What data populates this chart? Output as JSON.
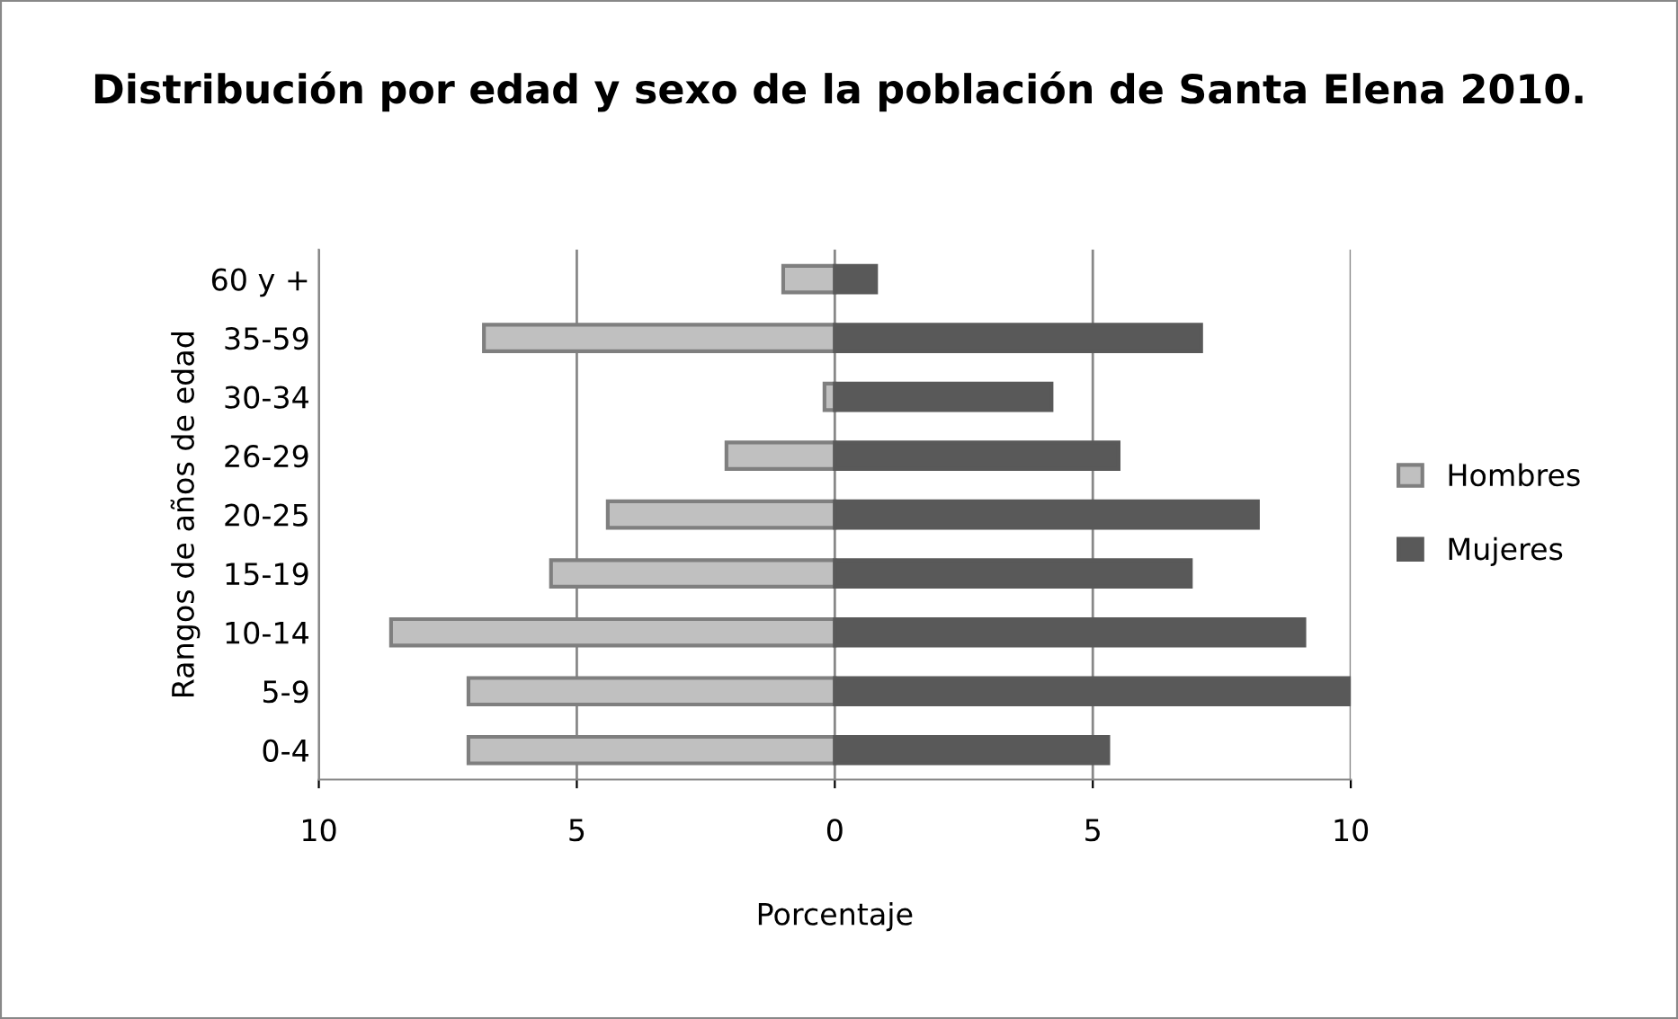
{
  "chart_data": {
    "type": "bar",
    "orientation": "horizontal",
    "title": "Distribución por edad y sexo de la población de Santa Elena 2010.",
    "xlabel": "Porcentaje",
    "ylabel": "Rangos de años de edad",
    "categories": [
      "60 y +",
      "35-59",
      "30-34",
      "26-29",
      "20-25",
      "15-19",
      "10-14",
      "5-9",
      "0-4"
    ],
    "series": [
      {
        "name": "Hombres",
        "color": "#c0c0c0",
        "values": [
          -1.0,
          -6.8,
          -0.2,
          -2.1,
          -4.4,
          -5.5,
          -8.6,
          -7.1,
          -7.1
        ]
      },
      {
        "name": "Mujeres",
        "color": "#595959",
        "values": [
          0.8,
          7.1,
          4.2,
          5.5,
          8.2,
          6.9,
          9.1,
          10.0,
          5.3
        ]
      }
    ],
    "xlim": [
      -10,
      10
    ],
    "xticks": [
      {
        "value": -10,
        "label": "10"
      },
      {
        "value": -5,
        "label": "5"
      },
      0,
      5,
      10
    ],
    "stacked": true,
    "grid": "x",
    "legend": "right"
  }
}
